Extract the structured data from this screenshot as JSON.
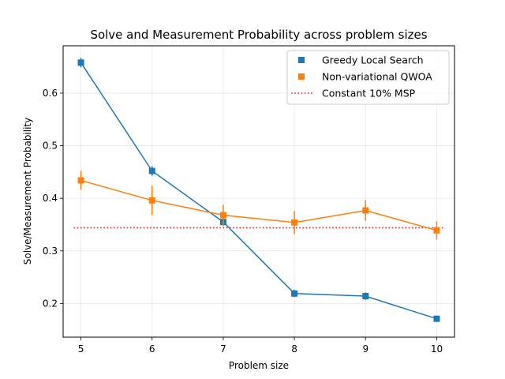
{
  "chart_data": {
    "type": "line",
    "title": "Solve and Measurement Probability across problem sizes",
    "xlabel": "Problem size",
    "ylabel": "Solve/Measurement Probability",
    "xlim": [
      4.75,
      10.25
    ],
    "ylim": [
      0.136,
      0.69
    ],
    "x_ticks": [
      5,
      6,
      7,
      8,
      9,
      10
    ],
    "x_tick_labels": [
      "5",
      "6",
      "7",
      "8",
      "9",
      "10"
    ],
    "y_ticks": [
      0.2,
      0.3,
      0.4,
      0.5,
      0.6
    ],
    "y_tick_labels": [
      "0.2",
      "0.3",
      "0.4",
      "0.5",
      "0.6"
    ],
    "grid": true,
    "legend_position": "top-right",
    "series": [
      {
        "name": "Greedy Local Search",
        "color": "#1f77b4",
        "marker": "square",
        "x": [
          5,
          6,
          7,
          8,
          9,
          10
        ],
        "values": [
          0.658,
          0.452,
          0.355,
          0.219,
          0.214,
          0.171
        ],
        "errors": [
          0.009,
          0.009,
          0.007,
          0.007,
          0.007,
          0.005
        ]
      },
      {
        "name": "Non-variational QWOA",
        "color": "#ff7f0e",
        "marker": "square",
        "x": [
          5,
          6,
          7,
          8,
          9,
          10
        ],
        "values": [
          0.434,
          0.396,
          0.368,
          0.354,
          0.377,
          0.339
        ],
        "errors": [
          0.018,
          0.028,
          0.02,
          0.022,
          0.02,
          0.017
        ]
      }
    ],
    "reference_lines": [
      {
        "name": "Constant 10% MSP",
        "color": "#d62728",
        "style": "dotted",
        "value": 0.344
      }
    ]
  }
}
